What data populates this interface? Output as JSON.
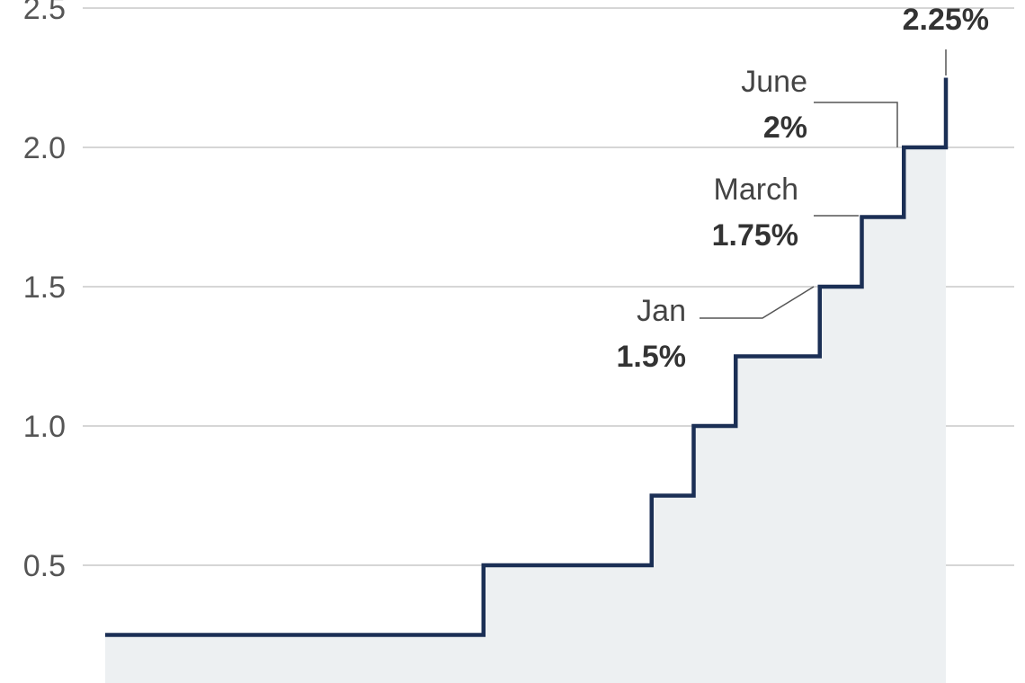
{
  "chart_data": {
    "type": "area",
    "title": "",
    "xlabel": "",
    "ylabel": "",
    "ylim": [
      0,
      2.5
    ],
    "yticks": [
      "2.5",
      "2.0",
      "1.5",
      "1.0",
      "0.5"
    ],
    "ytick_values": [
      2.5,
      2.0,
      1.5,
      1.0,
      0.5
    ],
    "grid": true,
    "step": true,
    "series": [
      {
        "steps": [
          0.25,
          0.5,
          0.75,
          1.0,
          1.25,
          1.5,
          1.75,
          2.0,
          2.25
        ],
        "durations": [
          9,
          4,
          1,
          1,
          2,
          1,
          1,
          1,
          0
        ]
      }
    ],
    "annotations": [
      {
        "label": "Jan",
        "value": "1.5%",
        "y": 1.5
      },
      {
        "label": "March",
        "value": "1.75%",
        "y": 1.75
      },
      {
        "label": "June",
        "value": "2%",
        "y": 2.0
      },
      {
        "label": "",
        "value": "2.25%",
        "y": 2.25
      }
    ],
    "colors": {
      "line": "#1b2f55",
      "fill": "#edf0f2",
      "grid": "#c8c8c8"
    }
  }
}
